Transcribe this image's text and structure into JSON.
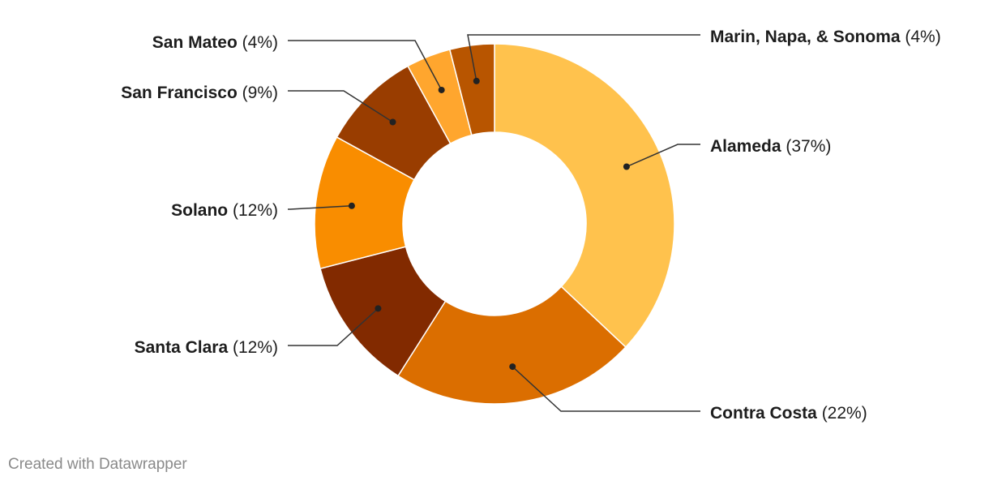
{
  "chart_data": {
    "type": "pie",
    "subtype": "donut",
    "start_angle_deg": 0,
    "direction": "clockwise",
    "slices": [
      {
        "label": "Alameda",
        "pct_label": "(37%)",
        "value": 37,
        "color": "#ffc24d",
        "side": "right"
      },
      {
        "label": "Contra Costa",
        "pct_label": "(22%)",
        "value": 22,
        "color": "#db6e00",
        "side": "right"
      },
      {
        "label": "Santa Clara",
        "pct_label": "(12%)",
        "value": 12,
        "color": "#822a00",
        "side": "left"
      },
      {
        "label": "Solano",
        "pct_label": "(12%)",
        "value": 12,
        "color": "#f98d00",
        "side": "left"
      },
      {
        "label": "San Francisco",
        "pct_label": "(9%)",
        "value": 9,
        "color": "#993d00",
        "side": "left"
      },
      {
        "label": "San Mateo",
        "pct_label": "(4%)",
        "value": 4,
        "color": "#ffa62e",
        "side": "left"
      },
      {
        "label": "Marin, Napa, & Sonoma",
        "pct_label": "(4%)",
        "value": 4,
        "color": "#b85500",
        "side": "right"
      }
    ]
  },
  "footer": {
    "credit": "Created with Datawrapper"
  }
}
